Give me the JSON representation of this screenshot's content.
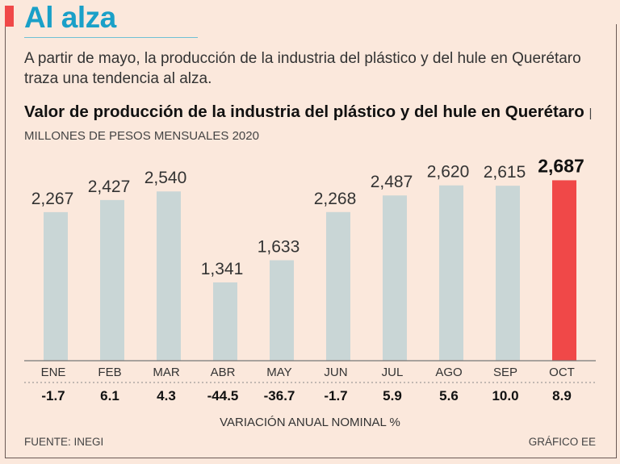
{
  "header": {
    "title": "Al alza",
    "subtitle": "A partir de mayo, la producción de la industria del plástico y del hule en Querétaro traza una tendencia al alza."
  },
  "chart_data": {
    "type": "bar",
    "title": "Valor de producción de la industria del plástico y del hule en Querétaro",
    "units": "| MILLONES DE PESOS MENSUALES 2020",
    "categories": [
      "ENE",
      "FEB",
      "MAR",
      "ABR",
      "MAY",
      "JUN",
      "JUL",
      "AGO",
      "SEP",
      "OCT"
    ],
    "values": [
      2267,
      2427,
      2540,
      1341,
      1633,
      2268,
      2487,
      2620,
      2615,
      2687
    ],
    "value_labels": [
      "2,267",
      "2,427",
      "2,540",
      "1,341",
      "1,633",
      "2,268",
      "2,487",
      "2,620",
      "2,615",
      "2,687"
    ],
    "variation": [
      "-1.7",
      "6.1",
      "4.3",
      "-44.5",
      "-36.7",
      "-1.7",
      "5.9",
      "5.6",
      "10.0",
      "8.9"
    ],
    "variation_label": "VARIACIÓN ANUAL NOMINAL %",
    "highlight_index": 9,
    "colors": {
      "bar": "#c9d6d6",
      "highlight": "#f04848"
    }
  },
  "footer": {
    "source": "FUENTE: INEGI",
    "credit": "GRÁFICO EE"
  }
}
